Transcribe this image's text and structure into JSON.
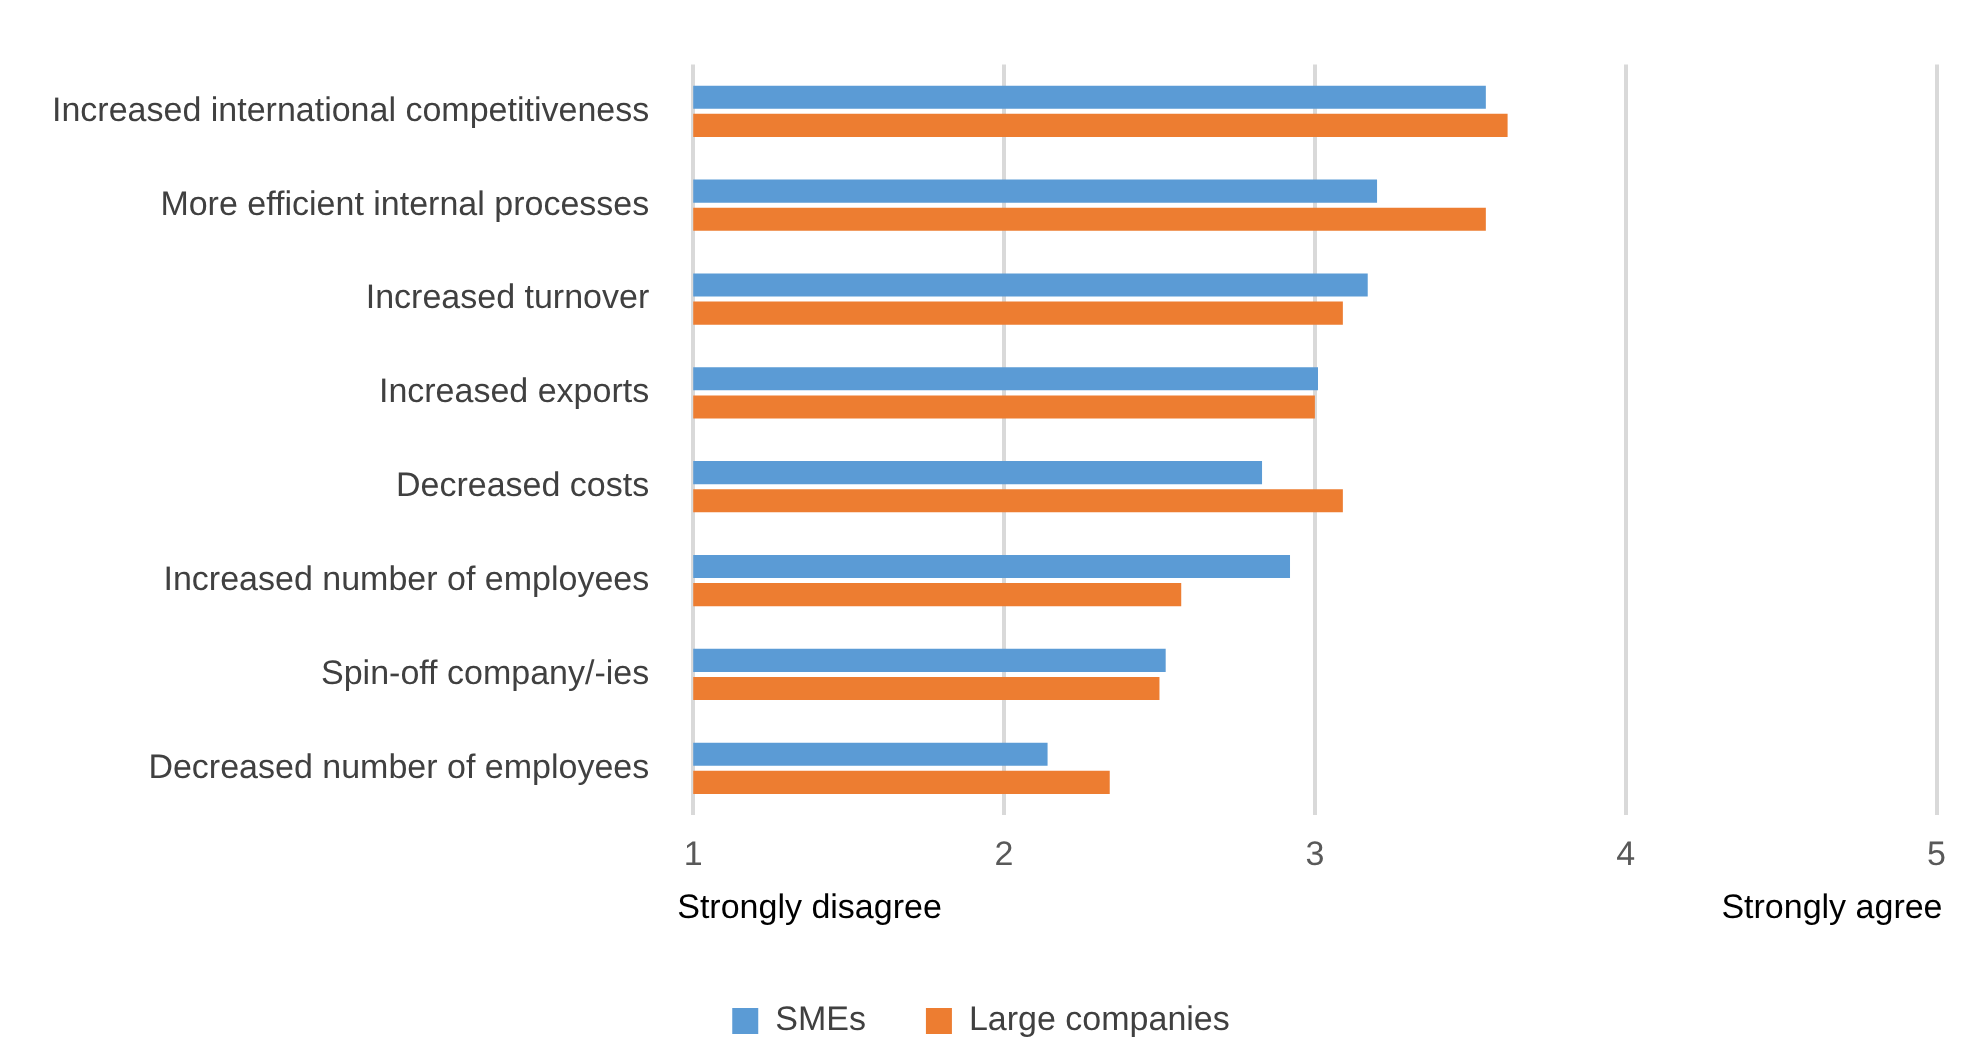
{
  "chart_data": {
    "type": "bar",
    "orientation": "horizontal",
    "categories": [
      "Increased international competitiveness",
      "More efficient internal processes",
      "Increased turnover",
      "Increased exports",
      "Decreased costs",
      "Increased number of employees",
      "Spin-off company/-ies",
      "Decreased number of employees"
    ],
    "series": [
      {
        "name": "SMEs",
        "color": "#5b9bd5",
        "values": [
          3.55,
          3.2,
          3.17,
          3.01,
          2.83,
          2.92,
          2.52,
          2.14
        ]
      },
      {
        "name": "Large companies",
        "color": "#ed7d31",
        "values": [
          3.62,
          3.55,
          3.09,
          3.0,
          3.09,
          2.57,
          2.5,
          2.34
        ]
      }
    ],
    "xlim": [
      1,
      5
    ],
    "xticks": [
      1,
      2,
      3,
      4,
      5
    ],
    "grid": "x",
    "legend": "bottom",
    "annotations": [
      "Strongly disagree",
      "Strongly agree"
    ]
  }
}
